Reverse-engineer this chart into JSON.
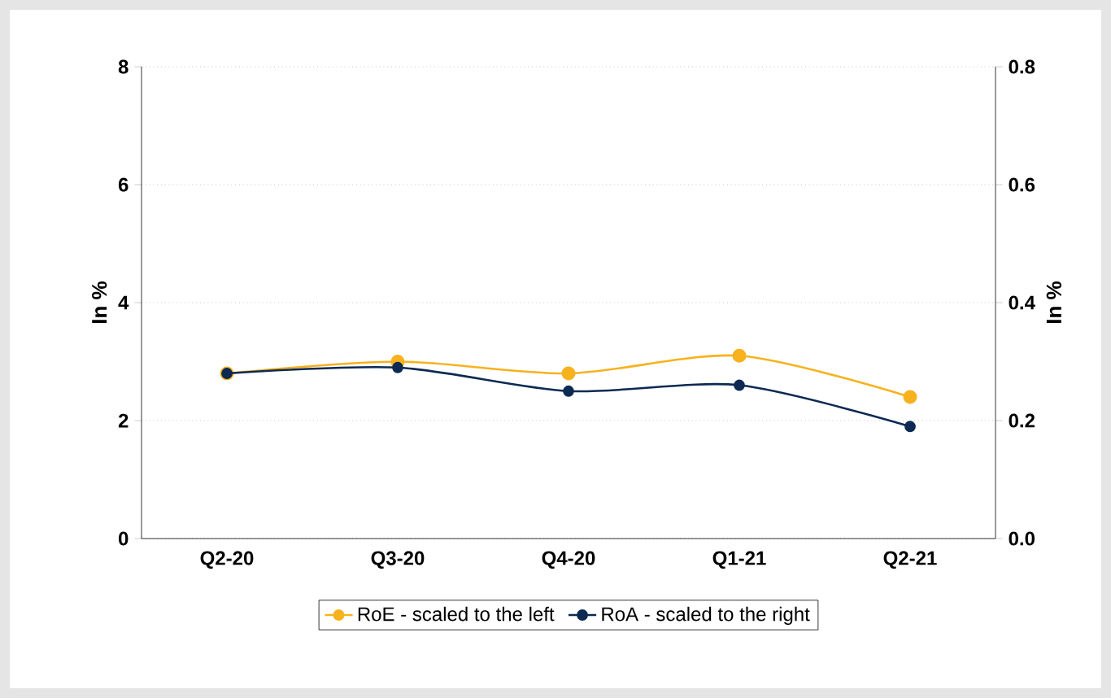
{
  "chart_data": {
    "type": "line",
    "categories": [
      "Q2-20",
      "Q3-20",
      "Q4-20",
      "Q1-21",
      "Q2-21"
    ],
    "ylabel": "In %",
    "y2label": "In %",
    "series": [
      {
        "name": "RoE - scaled to the left",
        "color": "#f7b21e",
        "values": [
          2.8,
          3.0,
          2.8,
          3.1,
          2.4
        ]
      },
      {
        "name": "RoA - scaled to the right",
        "color": "#0c2a52",
        "values": [
          0.28,
          0.29,
          0.25,
          0.26,
          0.19
        ],
        "axis": "y2"
      }
    ],
    "ylim": [
      0,
      8
    ],
    "yticks": [
      0,
      2,
      4,
      6,
      8
    ],
    "y2lim": [
      0,
      0.8
    ],
    "y2ticks": [
      {
        "value": 0,
        "label": "0.0"
      },
      0.2,
      0.4,
      0.6,
      0.8
    ],
    "grid": "y",
    "legend": "bottom",
    "marker": "circle",
    "line_style": "solid"
  }
}
